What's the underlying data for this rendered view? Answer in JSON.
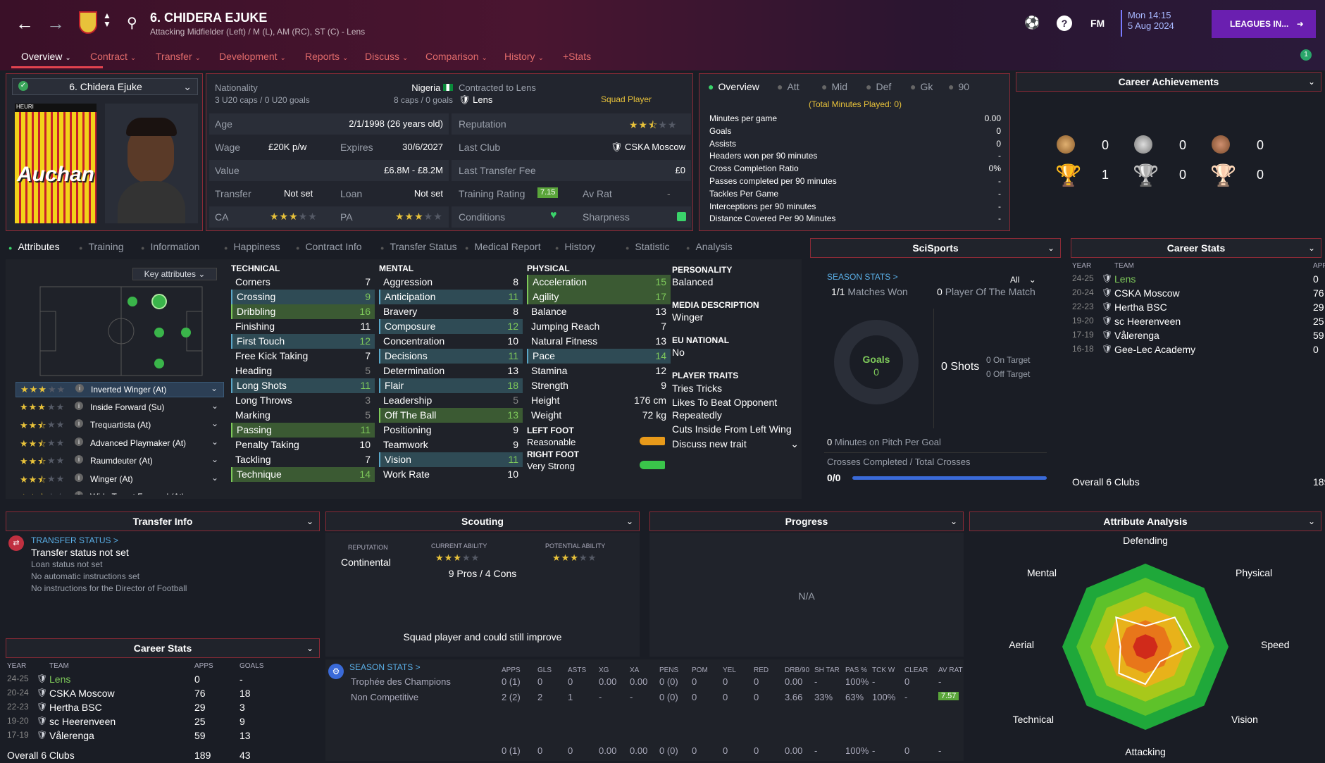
{
  "header": {
    "player_title": "6. CHIDERA EJUKE",
    "positions": "Attacking Midfielder (Left) / M (L), AM (RC), ST (C) - Lens",
    "date_day": "Mon 14:15",
    "date_full": "5 Aug 2024",
    "leagues_button": "LEAGUES IN...",
    "fm_label": "FM",
    "notif_count": "1"
  },
  "nav": [
    "Overview",
    "Contract",
    "Transfer",
    "Development",
    "Reports",
    "Discuss",
    "Comparison",
    "History",
    "+Stats"
  ],
  "profile": {
    "selector": "6. Chidera Ejuke",
    "shirt_text": "Auchan",
    "shirt_top": "HEURI"
  },
  "info": {
    "nationality_label": "Nationality",
    "nationality": "Nigeria",
    "u20": "3 U20 caps / 0 U20 goals",
    "caps": "8 caps / 0 goals",
    "contracted_label": "Contracted to Lens",
    "club": "Lens",
    "squad_status": "Squad Player",
    "age_label": "Age",
    "age": "2/1/1998 (26 years old)",
    "reputation_label": "Reputation",
    "wage_label": "Wage",
    "wage": "£20K p/w",
    "expires_label": "Expires",
    "expires": "30/6/2027",
    "last_club_label": "Last Club",
    "last_club": "CSKA Moscow",
    "value_label": "Value",
    "value": "£6.8M - £8.2M",
    "last_fee_label": "Last Transfer Fee",
    "last_fee": "£0",
    "transfer_label": "Transfer",
    "transfer": "Not set",
    "loan_label": "Loan",
    "loan": "Not set",
    "training_label": "Training Rating",
    "training": "7.15",
    "avrat_label": "Av Rat",
    "avrat": "-",
    "ca_label": "CA",
    "pa_label": "PA",
    "conditions_label": "Conditions",
    "sharpness_label": "Sharpness"
  },
  "overview_stats": {
    "tabs": [
      "Overview",
      "Att",
      "Mid",
      "Def",
      "Gk",
      "90"
    ],
    "total": "(Total Minutes Played: 0)",
    "rows": [
      {
        "label": "Minutes per game",
        "value": "0.00"
      },
      {
        "label": "Goals",
        "value": "0"
      },
      {
        "label": "Assists",
        "value": "0"
      },
      {
        "label": "Headers won per 90 minutes",
        "value": "-"
      },
      {
        "label": "Cross Completion Ratio",
        "value": "0%"
      },
      {
        "label": "Passes completed per 90 minutes",
        "value": "-"
      },
      {
        "label": "Tackles Per Game",
        "value": "-"
      },
      {
        "label": "Interceptions per 90 minutes",
        "value": "-"
      },
      {
        "label": "Distance Covered Per 90 Minutes",
        "value": "-"
      }
    ]
  },
  "achievements": {
    "title": "Career Achievements",
    "medals": [
      "0",
      "0",
      "0"
    ],
    "trophies": [
      "1",
      "0",
      "0"
    ]
  },
  "subtabs": [
    "Attributes",
    "Training",
    "Information",
    "Happiness",
    "Contract Info",
    "Transfer Status",
    "Medical Report",
    "History",
    "Statistic",
    "Analysis"
  ],
  "key_attr_label": "Key attributes",
  "roles": [
    {
      "name": "Inverted Winger (At)",
      "stars": 3,
      "half": false
    },
    {
      "name": "Inside Forward (Su)",
      "stars": 3,
      "half": false
    },
    {
      "name": "Trequartista (At)",
      "stars": 2,
      "half": true
    },
    {
      "name": "Advanced Playmaker (At)",
      "stars": 2,
      "half": true
    },
    {
      "name": "Raumdeuter (At)",
      "stars": 2,
      "half": true
    },
    {
      "name": "Winger (At)",
      "stars": 2,
      "half": true
    },
    {
      "name": "Wide Target Forward (At)",
      "stars": 2,
      "half": true
    }
  ],
  "technical_title": "TECHNICAL",
  "technical": [
    {
      "n": "Corners",
      "v": "7",
      "h": ""
    },
    {
      "n": "Crossing",
      "v": "9",
      "h": "b"
    },
    {
      "n": "Dribbling",
      "v": "16",
      "h": "g"
    },
    {
      "n": "Finishing",
      "v": "11",
      "h": ""
    },
    {
      "n": "First Touch",
      "v": "12",
      "h": "b"
    },
    {
      "n": "Free Kick Taking",
      "v": "7",
      "h": ""
    },
    {
      "n": "Heading",
      "v": "5",
      "h": ""
    },
    {
      "n": "Long Shots",
      "v": "11",
      "h": "b"
    },
    {
      "n": "Long Throws",
      "v": "3",
      "h": ""
    },
    {
      "n": "Marking",
      "v": "5",
      "h": ""
    },
    {
      "n": "Passing",
      "v": "11",
      "h": "g"
    },
    {
      "n": "Penalty Taking",
      "v": "10",
      "h": ""
    },
    {
      "n": "Tackling",
      "v": "7",
      "h": ""
    },
    {
      "n": "Technique",
      "v": "14",
      "h": "g"
    }
  ],
  "mental_title": "MENTAL",
  "mental": [
    {
      "n": "Aggression",
      "v": "8",
      "h": ""
    },
    {
      "n": "Anticipation",
      "v": "11",
      "h": "b"
    },
    {
      "n": "Bravery",
      "v": "8",
      "h": ""
    },
    {
      "n": "Composure",
      "v": "12",
      "h": "b"
    },
    {
      "n": "Concentration",
      "v": "10",
      "h": ""
    },
    {
      "n": "Decisions",
      "v": "11",
      "h": "b"
    },
    {
      "n": "Determination",
      "v": "13",
      "h": ""
    },
    {
      "n": "Flair",
      "v": "18",
      "h": "b"
    },
    {
      "n": "Leadership",
      "v": "5",
      "h": ""
    },
    {
      "n": "Off The Ball",
      "v": "13",
      "h": "g"
    },
    {
      "n": "Positioning",
      "v": "9",
      "h": ""
    },
    {
      "n": "Teamwork",
      "v": "9",
      "h": ""
    },
    {
      "n": "Vision",
      "v": "11",
      "h": "b"
    },
    {
      "n": "Work Rate",
      "v": "10",
      "h": ""
    }
  ],
  "physical_title": "PHYSICAL",
  "physical": [
    {
      "n": "Acceleration",
      "v": "15",
      "h": "g"
    },
    {
      "n": "Agility",
      "v": "17",
      "h": "g"
    },
    {
      "n": "Balance",
      "v": "13",
      "h": ""
    },
    {
      "n": "Jumping Reach",
      "v": "7",
      "h": ""
    },
    {
      "n": "Natural Fitness",
      "v": "13",
      "h": ""
    },
    {
      "n": "Pace",
      "v": "14",
      "h": "b"
    },
    {
      "n": "Stamina",
      "v": "12",
      "h": ""
    },
    {
      "n": "Strength",
      "v": "9",
      "h": ""
    },
    {
      "n": "Height",
      "v": "176 cm",
      "h": ""
    },
    {
      "n": "Weight",
      "v": "72 kg",
      "h": ""
    }
  ],
  "feet": {
    "left_label": "LEFT FOOT",
    "left": "Reasonable",
    "right_label": "RIGHT FOOT",
    "right": "Very Strong"
  },
  "personality": {
    "p_label": "PERSONALITY",
    "p": "Balanced",
    "md_label": "MEDIA DESCRIPTION",
    "md": "Winger",
    "eu_label": "EU NATIONAL",
    "eu": "No",
    "traits_label": "PLAYER TRAITS",
    "traits": [
      "Tries Tricks",
      "Likes To Beat Opponent Repeatedly",
      "Cuts Inside From Left Wing"
    ],
    "discuss": "Discuss new trait"
  },
  "scisports": {
    "title": "SciSports",
    "season_stats": "SEASON STATS >",
    "filter": "All",
    "matches": "1/1",
    "matches_label": "Matches Won",
    "potm": "0",
    "potm_label": "Player Of The Match",
    "goals_label": "Goals",
    "goals": "0",
    "shots": "0",
    "shots_label": "Shots",
    "on_target": "0",
    "on_target_label": "On Target",
    "off_target": "0",
    "off_target_label": "Off Target",
    "mins_goal": "0",
    "mins_goal_label": "Minutes on Pitch Per Goal",
    "crosses_label": "Crosses Completed / Total Crosses",
    "crosses": "0/0"
  },
  "career_stats": {
    "title": "Career Stats",
    "cols": [
      "YEAR",
      "TEAM",
      "APPS",
      "GOALS"
    ],
    "rows": [
      {
        "y": "24-25",
        "t": "Lens",
        "a": "0",
        "g": "-",
        "cur": true
      },
      {
        "y": "20-24",
        "t": "CSKA Moscow",
        "a": "76",
        "g": "18",
        "cur": false
      },
      {
        "y": "22-23",
        "t": "Hertha BSC",
        "a": "29",
        "g": "3",
        "cur": false
      },
      {
        "y": "19-20",
        "t": "sc Heerenveen",
        "a": "25",
        "g": "9",
        "cur": false
      },
      {
        "y": "17-19",
        "t": "Vålerenga",
        "a": "59",
        "g": "13",
        "cur": false
      },
      {
        "y": "16-18",
        "t": "Gee-Lec Academy",
        "a": "0",
        "g": "-",
        "cur": false
      }
    ],
    "overall": "Overall 6 Clubs",
    "overall_apps": "189",
    "overall_goals": "43"
  },
  "transfer_info": {
    "title": "Transfer Info",
    "status_link": "TRANSFER STATUS >",
    "status": "Transfer status not set",
    "lines": [
      "Loan status not set",
      "No automatic instructions set",
      "No instructions for the Director of Football"
    ]
  },
  "scouting": {
    "title": "Scouting",
    "rep_label": "REPUTATION",
    "rep": "Continental",
    "ca_label": "CURRENT ABILITY",
    "pa_label": "POTENTIAL ABILITY",
    "pros": "9 Pros / 4 Cons",
    "summary": "Squad player and could still improve"
  },
  "progress": {
    "title": "Progress",
    "na": "N/A"
  },
  "analysis": {
    "title": "Attribute Analysis",
    "labels": [
      "Defending",
      "Physical",
      "Speed",
      "Vision",
      "Attacking",
      "Technical",
      "Aerial",
      "Mental"
    ],
    "values": [
      0.25,
      0.5,
      0.55,
      0.25,
      0.45,
      0.45,
      0.3,
      0.5
    ]
  },
  "season_table": {
    "link": "SEASON STATS >",
    "cols": [
      "APPS",
      "GLS",
      "ASTS",
      "XG",
      "XA",
      "PENS",
      "POM",
      "YEL",
      "RED",
      "DRB/90",
      "SH TAR",
      "PAS %",
      "TCK W",
      "CLEAR",
      "AV RAT"
    ],
    "rows": [
      {
        "name": "Trophée des Champions",
        "vals": [
          "0 (1)",
          "0",
          "0",
          "0.00",
          "0.00",
          "0 (0)",
          "0",
          "0",
          "0",
          "0.00",
          "-",
          "100%",
          "-",
          "0",
          "-"
        ]
      },
      {
        "name": "Non Competitive",
        "vals": [
          "2 (2)",
          "2",
          "1",
          "-",
          "-",
          "0 (0)",
          "0",
          "0",
          "0",
          "3.66",
          "33%",
          "63%",
          "100%",
          "-",
          "7.57"
        ]
      }
    ],
    "total": [
      "0 (1)",
      "0",
      "0",
      "0.00",
      "0.00",
      "0 (0)",
      "0",
      "0",
      "0",
      "0.00",
      "-",
      "100%",
      "-",
      "0",
      "-"
    ]
  }
}
